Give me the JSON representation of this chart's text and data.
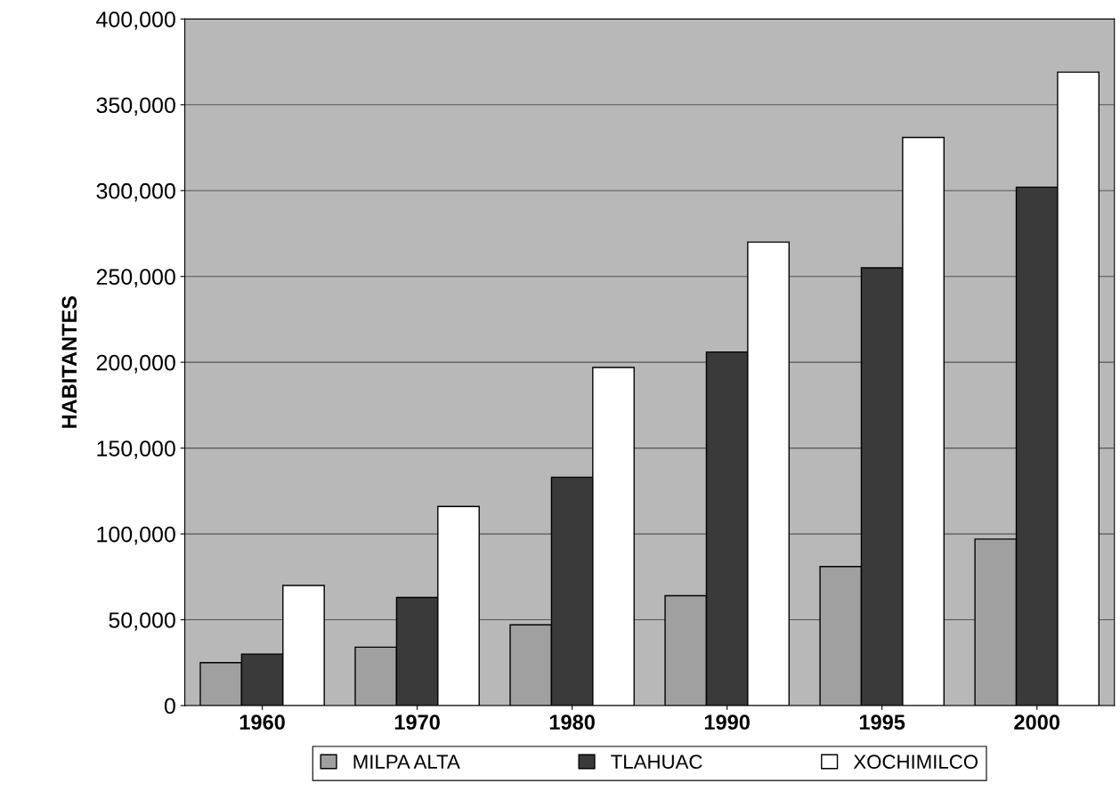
{
  "chart_data": {
    "type": "bar",
    "ylabel": "HABITANTES",
    "categories": [
      "1960",
      "1970",
      "1980",
      "1990",
      "1995",
      "2000"
    ],
    "series": [
      {
        "name": "MILPA ALTA",
        "color": "#a0a0a0",
        "values": [
          25000,
          34000,
          47000,
          64000,
          81000,
          97000
        ]
      },
      {
        "name": "TLAHUAC",
        "color": "#3a3a3a",
        "values": [
          30000,
          63000,
          133000,
          206000,
          255000,
          302000
        ]
      },
      {
        "name": "XOCHIMILCO",
        "color": "#ffffff",
        "values": [
          70000,
          116000,
          197000,
          270000,
          331000,
          369000
        ]
      }
    ],
    "ylim": [
      0,
      400000
    ],
    "yticks": [
      {
        "value": 0,
        "label": "0"
      },
      {
        "value": 50000,
        "label": "50,000"
      },
      {
        "value": 100000,
        "label": "100,000"
      },
      {
        "value": 150000,
        "label": "150,000"
      },
      {
        "value": 200000,
        "label": "200,000"
      },
      {
        "value": 250000,
        "label": "250,000"
      },
      {
        "value": 300000,
        "label": "300,000"
      },
      {
        "value": 350000,
        "label": "350,000"
      },
      {
        "value": 400000,
        "label": "400,000"
      }
    ],
    "grid": "y",
    "legend": "bottom"
  }
}
